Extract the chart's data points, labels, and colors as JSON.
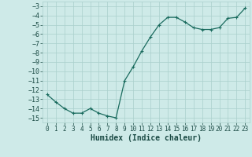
{
  "x": [
    0,
    1,
    2,
    3,
    4,
    5,
    6,
    7,
    8,
    9,
    10,
    11,
    12,
    13,
    14,
    15,
    16,
    17,
    18,
    19,
    20,
    21,
    22,
    23
  ],
  "y": [
    -12.5,
    -13.3,
    -14.0,
    -14.5,
    -14.5,
    -14.0,
    -14.5,
    -14.8,
    -15.0,
    -11.0,
    -9.5,
    -7.8,
    -6.3,
    -5.0,
    -4.2,
    -4.2,
    -4.7,
    -5.3,
    -5.5,
    -5.5,
    -5.3,
    -4.3,
    -4.2,
    -3.2
  ],
  "line_color": "#1a6b5e",
  "marker": "+",
  "marker_size": 3,
  "linewidth": 0.9,
  "bg_color": "#ceeae8",
  "grid_color": "#aacfcc",
  "xlabel": "Humidex (Indice chaleur)",
  "xlim": [
    -0.5,
    23.5
  ],
  "ylim": [
    -15.5,
    -2.5
  ],
  "yticks": [
    -3,
    -4,
    -5,
    -6,
    -7,
    -8,
    -9,
    -10,
    -11,
    -12,
    -13,
    -14,
    -15
  ],
  "xticks": [
    0,
    1,
    2,
    3,
    4,
    5,
    6,
    7,
    8,
    9,
    10,
    11,
    12,
    13,
    14,
    15,
    16,
    17,
    18,
    19,
    20,
    21,
    22,
    23
  ],
  "tick_fontsize": 5.5,
  "xlabel_fontsize": 7,
  "tick_color": "#1a4a44"
}
